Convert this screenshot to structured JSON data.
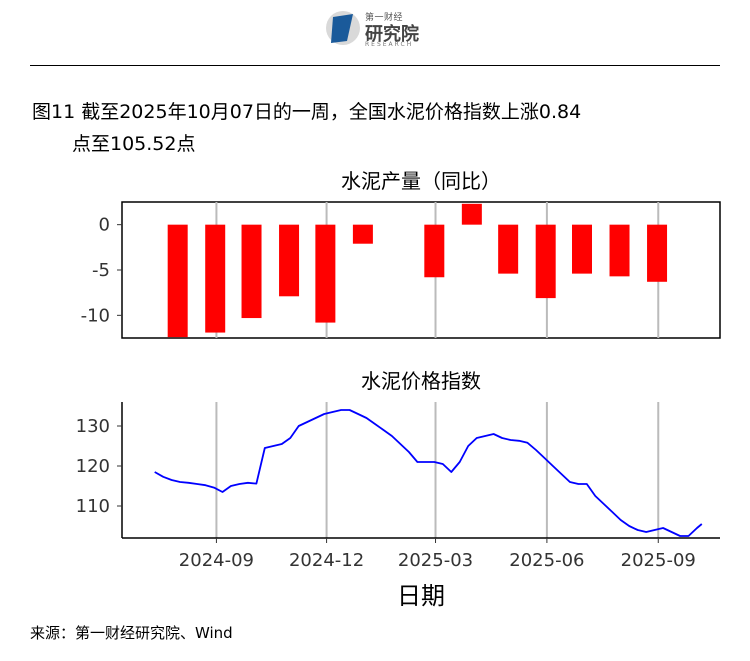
{
  "header": {
    "logo_top": "第一财经",
    "logo_main": "研究院",
    "logo_sub": "RESEARCH"
  },
  "caption": {
    "line1": "图11  截至2025年10月07日的一周，全国水泥价格指数上涨0.84",
    "line2": "点至105.52点"
  },
  "source": "来源：第一财经研究院、Wind",
  "colors": {
    "bars": "#ff0000",
    "line": "#0000ff",
    "grid": "#bbbbbb"
  },
  "chart_data": [
    {
      "type": "bar",
      "title": "水泥产量（同比）",
      "categories": [
        "2024-07",
        "2024-08",
        "2024-09",
        "2024-10",
        "2024-11",
        "2024-12",
        "2025-01",
        "2025-02",
        "2025-03",
        "2025-04",
        "2025-05",
        "2025-06",
        "2025-07",
        "2025-08"
      ],
      "x_dates": [
        "2024-07-31",
        "2024-08-31",
        "2024-09-30",
        "2024-10-31",
        "2024-11-30",
        "2024-12-31",
        "2025-01-31",
        "2025-02-28",
        "2025-03-31",
        "2025-04-30",
        "2025-05-31",
        "2025-06-30",
        "2025-07-31",
        "2025-08-31"
      ],
      "values": [
        -12.4,
        -11.9,
        -10.3,
        -7.9,
        -10.8,
        -2.1,
        null,
        -5.8,
        2.3,
        -5.4,
        -8.1,
        -5.4,
        -5.7,
        -6.3
      ],
      "ylim": [
        -12.5,
        2.5
      ],
      "yticks": [
        0,
        -5,
        -10
      ],
      "grid": true
    },
    {
      "type": "line",
      "title": "水泥价格指数",
      "xlabel": "日期",
      "xticks": [
        "2024-09",
        "2024-12",
        "2025-03",
        "2025-06",
        "2025-09"
      ],
      "yticks": [
        130,
        120,
        110
      ],
      "ylim": [
        102,
        136
      ],
      "grid": true,
      "series": [
        {
          "x": [
            "2024-07-12",
            "2024-07-19",
            "2024-07-26",
            "2024-08-02",
            "2024-08-09",
            "2024-08-16",
            "2024-08-23",
            "2024-08-30",
            "2024-09-06",
            "2024-09-13",
            "2024-09-20",
            "2024-09-27",
            "2024-10-04",
            "2024-10-11",
            "2024-10-18",
            "2024-10-25",
            "2024-11-01",
            "2024-11-08",
            "2024-11-15",
            "2024-11-22",
            "2024-11-29",
            "2024-12-06",
            "2024-12-13",
            "2024-12-20",
            "2024-12-27",
            "2025-01-03",
            "2025-01-10",
            "2025-01-17",
            "2025-01-24",
            "2025-01-31",
            "2025-02-07",
            "2025-02-14",
            "2025-02-21",
            "2025-02-28",
            "2025-03-07",
            "2025-03-14",
            "2025-03-21",
            "2025-03-28",
            "2025-04-04",
            "2025-04-11",
            "2025-04-18",
            "2025-04-25",
            "2025-05-02",
            "2025-05-09",
            "2025-05-16",
            "2025-05-23",
            "2025-05-30",
            "2025-06-06",
            "2025-06-13",
            "2025-06-20",
            "2025-06-27",
            "2025-07-04",
            "2025-07-11",
            "2025-07-18",
            "2025-07-25",
            "2025-08-01",
            "2025-08-08",
            "2025-08-15",
            "2025-08-22",
            "2025-08-29",
            "2025-09-05",
            "2025-09-12",
            "2025-09-19",
            "2025-09-26",
            "2025-10-03",
            "2025-10-07"
          ],
          "values": [
            118.5,
            117.3,
            116.5,
            116.0,
            115.8,
            115.5,
            115.2,
            114.6,
            113.5,
            115.0,
            115.5,
            115.8,
            115.6,
            124.5,
            125.0,
            125.5,
            127.0,
            130.0,
            131.0,
            132.0,
            133.0,
            133.5,
            134.0,
            134.0,
            133.0,
            132.0,
            130.5,
            129.0,
            127.5,
            125.5,
            123.5,
            121.0,
            121.0,
            121.0,
            120.5,
            118.5,
            121.0,
            125.0,
            127.0,
            127.5,
            128.0,
            127.0,
            126.5,
            126.3,
            125.8,
            124.0,
            122.0,
            120.0,
            118.0,
            116.0,
            115.5,
            115.5,
            112.5,
            110.5,
            108.5,
            106.5,
            105.0,
            104.0,
            103.5,
            104.0,
            104.5,
            103.5,
            102.5,
            102.5,
            104.5,
            105.5
          ]
        }
      ]
    }
  ]
}
